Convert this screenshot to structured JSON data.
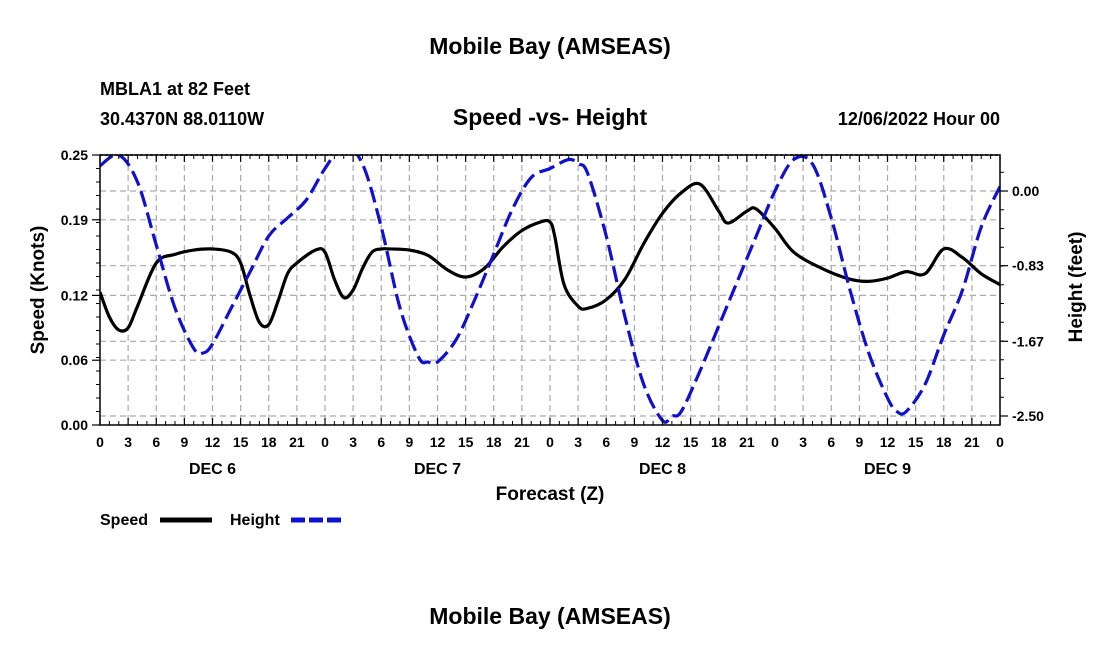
{
  "header": {
    "main_title": "Mobile Bay (AMSEAS)",
    "station_line": "MBLA1 at 82 Feet",
    "coords_line": "30.4370N  88.0110W",
    "plot_title": "Speed -vs- Height",
    "datetime": "12/06/2022 Hour 00"
  },
  "footer": {
    "main_title": "Mobile Bay (AMSEAS)"
  },
  "chart_data": {
    "type": "line",
    "title": "Speed -vs- Height",
    "xlabel": "Forecast (Z)",
    "ylabel_left": "Speed (Knots)",
    "ylabel_right": "Height (feet)",
    "x_unit": "hours",
    "xlim": [
      0,
      96
    ],
    "x_tick_labels": [
      "0",
      "3",
      "6",
      "9",
      "12",
      "15",
      "18",
      "21",
      "0",
      "3",
      "6",
      "9",
      "12",
      "15",
      "18",
      "21",
      "0",
      "3",
      "6",
      "9",
      "12",
      "15",
      "18",
      "21",
      "0",
      "3",
      "6",
      "9",
      "12",
      "15",
      "18",
      "21",
      "0"
    ],
    "day_labels": [
      "DEC 6",
      "DEC 7",
      "DEC 8",
      "DEC 9"
    ],
    "ylim_left": [
      0,
      0.25
    ],
    "yticks_left": [
      "0.00",
      "0.06",
      "0.12",
      "0.19",
      "0.25"
    ],
    "ylim_right": [
      -2.6,
      0.4
    ],
    "yticks_right": [
      "0.00",
      "-0.83",
      "-1.67",
      "-2.50"
    ],
    "grid": true,
    "legend_position": "bottom-left",
    "series": [
      {
        "name": "Speed",
        "axis": "left",
        "color": "#000000",
        "style": "solid",
        "x": [
          0,
          1,
          2,
          3,
          4,
          6,
          8,
          10,
          12,
          14,
          15,
          16,
          17,
          18,
          19,
          20,
          21,
          23,
          24,
          25,
          26,
          27,
          28,
          29,
          30,
          31,
          33,
          35,
          37,
          39,
          41,
          43,
          45,
          47,
          48,
          48.5,
          49.5,
          51,
          52,
          54,
          56,
          58,
          60,
          62,
          64,
          66,
          67,
          69,
          70,
          72,
          74,
          77,
          80,
          82,
          84,
          86,
          88,
          90,
          92,
          94,
          96
        ],
        "y": [
          0.123,
          0.1,
          0.088,
          0.09,
          0.11,
          0.15,
          0.158,
          0.162,
          0.163,
          0.16,
          0.15,
          0.12,
          0.095,
          0.093,
          0.115,
          0.14,
          0.15,
          0.162,
          0.16,
          0.135,
          0.118,
          0.125,
          0.145,
          0.16,
          0.163,
          0.163,
          0.162,
          0.157,
          0.144,
          0.137,
          0.145,
          0.165,
          0.18,
          0.188,
          0.188,
          0.175,
          0.13,
          0.11,
          0.108,
          0.116,
          0.135,
          0.168,
          0.196,
          0.215,
          0.223,
          0.198,
          0.187,
          0.198,
          0.2,
          0.182,
          0.16,
          0.145,
          0.135,
          0.133,
          0.136,
          0.142,
          0.14,
          0.163,
          0.155,
          0.14,
          0.13
        ]
      },
      {
        "name": "Height",
        "axis": "right",
        "color": "#1010d0",
        "style": "dashed",
        "x": [
          0,
          2,
          4,
          6,
          8,
          10,
          11,
          12,
          14,
          16,
          18,
          20,
          22,
          24,
          26,
          28,
          30,
          32,
          34,
          35,
          36,
          38,
          40,
          42,
          44,
          46,
          48,
          50,
          51,
          52,
          54,
          56,
          58,
          60,
          61,
          62,
          64,
          66,
          68,
          70,
          72,
          74,
          76,
          78,
          80,
          82,
          84,
          85,
          86,
          88,
          90,
          92,
          94,
          96
        ],
        "y": [
          0.28,
          0.4,
          0.1,
          -0.6,
          -1.3,
          -1.75,
          -1.8,
          -1.7,
          -1.3,
          -0.9,
          -0.5,
          -0.3,
          -0.1,
          0.25,
          0.5,
          0.3,
          -0.4,
          -1.3,
          -1.85,
          -1.9,
          -1.9,
          -1.65,
          -1.2,
          -0.7,
          -0.2,
          0.15,
          0.25,
          0.35,
          0.3,
          0.2,
          -0.5,
          -1.4,
          -2.15,
          -2.55,
          -2.5,
          -2.45,
          -2.0,
          -1.5,
          -1.0,
          -0.5,
          0.0,
          0.35,
          0.3,
          -0.3,
          -1.1,
          -1.8,
          -2.3,
          -2.45,
          -2.45,
          -2.15,
          -1.6,
          -1.1,
          -0.4,
          0.05
        ]
      }
    ]
  }
}
